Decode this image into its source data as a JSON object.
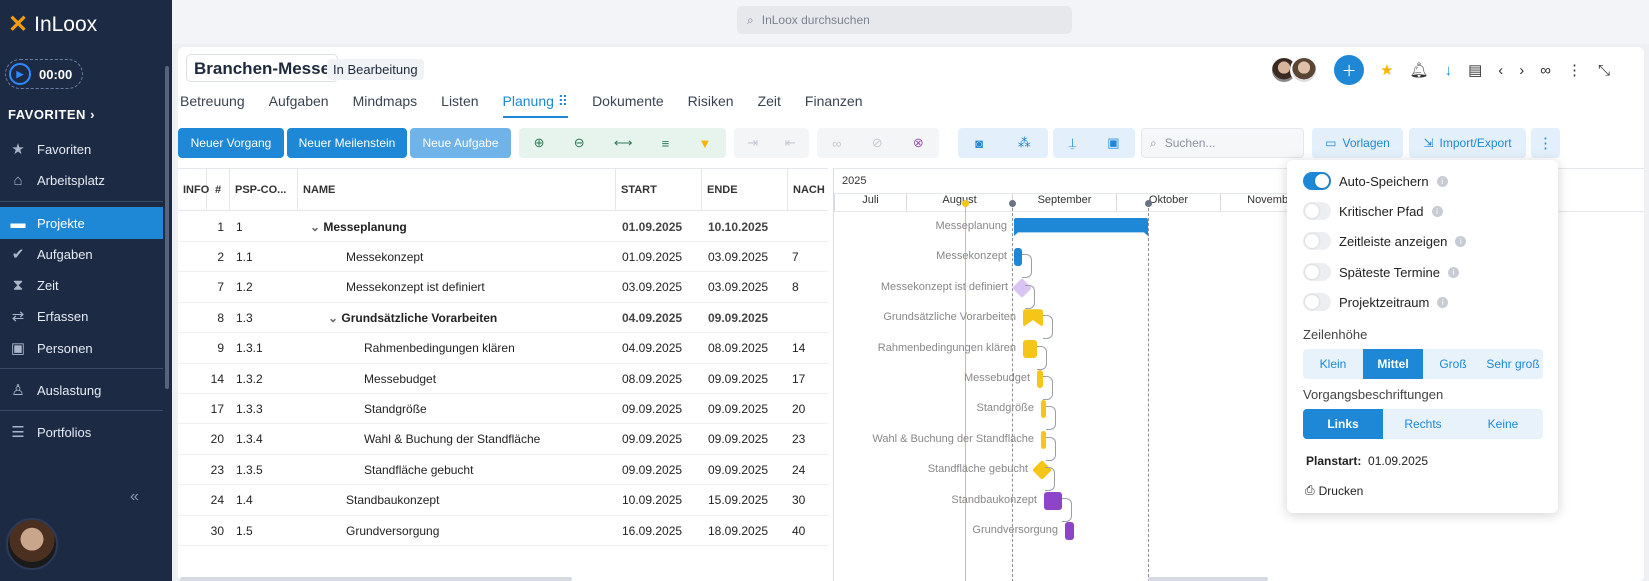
{
  "app": {
    "name": "InLoox"
  },
  "sidebar": {
    "timer": "00:00",
    "favorites_header": "FAVORITEN",
    "items": [
      {
        "label": "Favoriten",
        "icon": "star-icon"
      },
      {
        "label": "Arbeitsplatz",
        "icon": "home-icon"
      },
      {
        "label": "Projekte",
        "icon": "folder-icon",
        "active": true
      },
      {
        "label": "Aufgaben",
        "icon": "check-circle-icon"
      },
      {
        "label": "Zeit",
        "icon": "hourglass-icon"
      },
      {
        "label": "Erfassen",
        "icon": "transfer-icon"
      },
      {
        "label": "Personen",
        "icon": "person-card-icon"
      },
      {
        "label": "Auslastung",
        "icon": "workload-icon"
      },
      {
        "label": "Portfolios",
        "icon": "portfolio-icon"
      }
    ]
  },
  "topbar": {
    "search_placeholder": "InLoox durchsuchen"
  },
  "project": {
    "title": "Branchen-Messe",
    "status": "In Bearbeitung",
    "tabs": [
      "Betreuung",
      "Aufgaben",
      "Mindmaps",
      "Listen",
      "Planung",
      "Dokumente",
      "Risiken",
      "Zeit",
      "Finanzen"
    ],
    "active_tab": "Planung"
  },
  "toolbar": {
    "new_task": "Neuer Vorgang",
    "new_milestone": "Neuer Meilenstein",
    "new_todo": "Neue Aufgabe",
    "search_placeholder": "Suchen...",
    "templates": "Vorlagen",
    "import_export": "Import/Export"
  },
  "grid": {
    "headers": {
      "info": "INFO",
      "num": "#",
      "psp": "PSP-CO...",
      "name": "NAME",
      "start": "START",
      "end": "ENDE",
      "nach": "NACH"
    },
    "rows": [
      {
        "num": "1",
        "psp": "1",
        "name": "Messeplanung",
        "start": "01.09.2025",
        "end": "10.10.2025",
        "nach": "",
        "level": 0,
        "summary": true
      },
      {
        "num": "2",
        "psp": "1.1",
        "name": "Messekonzept",
        "start": "01.09.2025",
        "end": "03.09.2025",
        "nach": "7",
        "level": 1
      },
      {
        "num": "7",
        "psp": "1.2",
        "name": "Messekonzept ist definiert",
        "start": "03.09.2025",
        "end": "03.09.2025",
        "nach": "8",
        "level": 1
      },
      {
        "num": "8",
        "psp": "1.3",
        "name": "Grundsätzliche Vorarbeiten",
        "start": "04.09.2025",
        "end": "09.09.2025",
        "nach": "",
        "level": 1,
        "summary": true
      },
      {
        "num": "9",
        "psp": "1.3.1",
        "name": "Rahmenbedingungen klären",
        "start": "04.09.2025",
        "end": "08.09.2025",
        "nach": "14",
        "level": 2
      },
      {
        "num": "14",
        "psp": "1.3.2",
        "name": "Messebudget",
        "start": "08.09.2025",
        "end": "09.09.2025",
        "nach": "17",
        "level": 2
      },
      {
        "num": "17",
        "psp": "1.3.3",
        "name": "Standgröße",
        "start": "09.09.2025",
        "end": "09.09.2025",
        "nach": "20",
        "level": 2
      },
      {
        "num": "20",
        "psp": "1.3.4",
        "name": "Wahl & Buchung der Standfläche",
        "start": "09.09.2025",
        "end": "09.09.2025",
        "nach": "23",
        "level": 2
      },
      {
        "num": "23",
        "psp": "1.3.5",
        "name": "Standfläche gebucht",
        "start": "09.09.2025",
        "end": "09.09.2025",
        "nach": "24",
        "level": 2
      },
      {
        "num": "24",
        "psp": "1.4",
        "name": "Standbaukonzept",
        "start": "10.09.2025",
        "end": "15.09.2025",
        "nach": "30",
        "level": 1
      },
      {
        "num": "30",
        "psp": "1.5",
        "name": "Grundversorgung",
        "start": "16.09.2025",
        "end": "18.09.2025",
        "nach": "40",
        "level": 1
      }
    ]
  },
  "gantt": {
    "year": "2025",
    "months": [
      "Juli",
      "August",
      "September",
      "Oktober",
      "November"
    ],
    "labels": [
      "Messeplanung",
      "Messekonzept",
      "Messekonzept ist definiert",
      "Grundsätzliche Vorarbeiten",
      "Rahmenbedingungen klären",
      "Messebudget",
      "Standgröße",
      "Wahl & Buchung der Standfläche",
      "Standfläche gebucht",
      "Standbaukonzept",
      "Grundversorgung"
    ],
    "colors": {
      "summary": "#1e88d6",
      "task_blue": "#1e88d6",
      "yellow": "#f5c518",
      "purple": "#8e44c9",
      "milestone_lilac": "#d9c4f2",
      "today": "#f5c518"
    }
  },
  "settings_popup": {
    "toggles": [
      {
        "label": "Auto-Speichern",
        "on": true
      },
      {
        "label": "Kritischer Pfad",
        "on": false
      },
      {
        "label": "Zeitleiste anzeigen",
        "on": false
      },
      {
        "label": "Späteste Termine",
        "on": false
      },
      {
        "label": "Projektzeitraum",
        "on": false
      }
    ],
    "row_height_label": "Zeilenhöhe",
    "row_height_options": [
      "Klein",
      "Mittel",
      "Groß",
      "Sehr groß"
    ],
    "row_height_selected": "Mittel",
    "labels_label": "Vorgangsbeschriftungen",
    "labels_options": [
      "Links",
      "Rechts",
      "Keine"
    ],
    "labels_selected": "Links",
    "planstart_label": "Planstart:",
    "planstart_value": "01.09.2025",
    "print": "Drucken"
  }
}
